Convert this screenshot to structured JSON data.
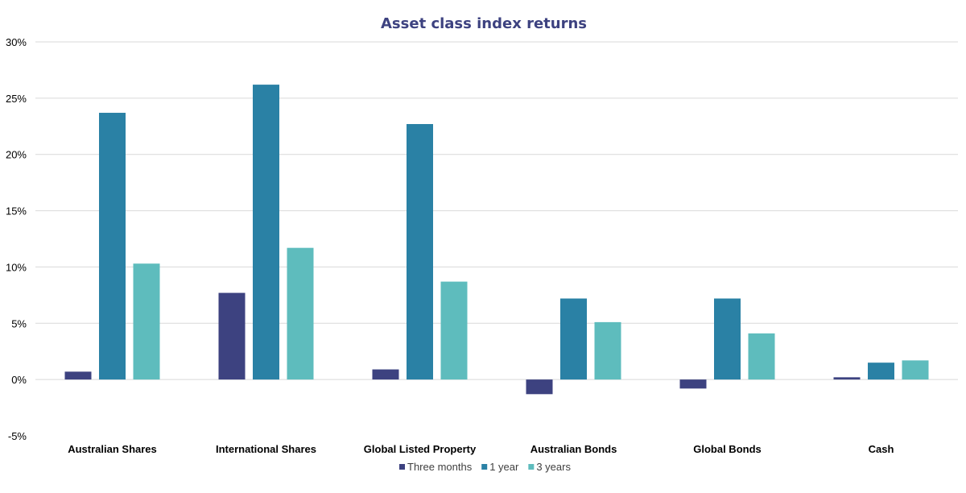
{
  "chart_data": {
    "type": "bar",
    "title": "Asset class index returns",
    "categories": [
      "Australian Shares",
      "International Shares",
      "Global Listed Property",
      "Australian Bonds",
      "Global Bonds",
      "Cash"
    ],
    "series": [
      {
        "name": "Three months",
        "color": "#3d4280",
        "values": [
          0.7,
          7.7,
          0.9,
          -1.3,
          -0.8,
          0.2
        ]
      },
      {
        "name": "1 year",
        "color": "#2a81a5",
        "values": [
          23.7,
          26.2,
          22.7,
          7.2,
          7.2,
          1.5
        ]
      },
      {
        "name": "3 years",
        "color": "#5ebcbd",
        "values": [
          10.3,
          11.7,
          8.7,
          5.1,
          4.1,
          1.7
        ]
      }
    ],
    "ylim": [
      -5,
      30
    ],
    "yticks": [
      30,
      25,
      20,
      15,
      10,
      5,
      0,
      -5
    ],
    "ytick_labels": [
      "30%",
      "25%",
      "20%",
      "15%",
      "10%",
      "5%",
      "0%",
      "-5%"
    ],
    "xlabel": "",
    "ylabel": "",
    "grid": true,
    "legend_position": "bottom",
    "colors": {
      "title": "#3d4280",
      "grid": "#d9d9d9"
    }
  }
}
